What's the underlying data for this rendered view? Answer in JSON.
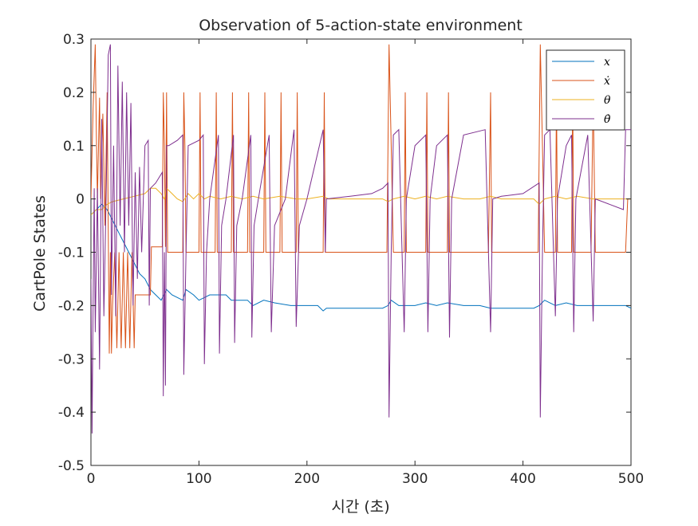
{
  "chart_data": {
    "type": "line",
    "title": "Observation of 5-action-state environment",
    "xlabel": "시간 (초)",
    "ylabel": "CartPole States",
    "xlim": [
      0,
      500
    ],
    "ylim": [
      -0.5,
      0.3
    ],
    "xticks": [
      0,
      100,
      200,
      300,
      400,
      500
    ],
    "xtick_labels": [
      "0",
      "100",
      "200",
      "300",
      "400",
      "500"
    ],
    "yticks": [
      -0.5,
      -0.4,
      -0.3,
      -0.2,
      -0.1,
      0,
      0.1,
      0.2,
      0.3
    ],
    "ytick_labels": [
      "-0.5",
      "-0.4",
      "-0.3",
      "-0.2",
      "-0.1",
      "0",
      "0.1",
      "0.2",
      "0.3"
    ],
    "grid": false,
    "legend_position": "top-right",
    "series": [
      {
        "name": "x",
        "color": "#0072BD",
        "points": [
          [
            0,
            -0.03
          ],
          [
            5,
            -0.02
          ],
          [
            10,
            -0.01
          ],
          [
            15,
            -0.02
          ],
          [
            20,
            -0.04
          ],
          [
            25,
            -0.06
          ],
          [
            30,
            -0.08
          ],
          [
            35,
            -0.1
          ],
          [
            40,
            -0.12
          ],
          [
            45,
            -0.14
          ],
          [
            50,
            -0.15
          ],
          [
            55,
            -0.17
          ],
          [
            60,
            -0.18
          ],
          [
            65,
            -0.19
          ],
          [
            70,
            -0.17
          ],
          [
            75,
            -0.18
          ],
          [
            85,
            -0.19
          ],
          [
            88,
            -0.17
          ],
          [
            95,
            -0.18
          ],
          [
            100,
            -0.19
          ],
          [
            110,
            -0.18
          ],
          [
            125,
            -0.18
          ],
          [
            130,
            -0.19
          ],
          [
            145,
            -0.19
          ],
          [
            150,
            -0.2
          ],
          [
            160,
            -0.19
          ],
          [
            170,
            -0.195
          ],
          [
            185,
            -0.2
          ],
          [
            195,
            -0.2
          ],
          [
            210,
            -0.2
          ],
          [
            215,
            -0.21
          ],
          [
            218,
            -0.205
          ],
          [
            270,
            -0.205
          ],
          [
            275,
            -0.2
          ],
          [
            278,
            -0.19
          ],
          [
            285,
            -0.2
          ],
          [
            300,
            -0.2
          ],
          [
            310,
            -0.195
          ],
          [
            320,
            -0.2
          ],
          [
            330,
            -0.195
          ],
          [
            345,
            -0.2
          ],
          [
            360,
            -0.2
          ],
          [
            370,
            -0.205
          ],
          [
            410,
            -0.205
          ],
          [
            415,
            -0.2
          ],
          [
            420,
            -0.19
          ],
          [
            430,
            -0.2
          ],
          [
            440,
            -0.195
          ],
          [
            450,
            -0.2
          ],
          [
            465,
            -0.2
          ],
          [
            480,
            -0.2
          ],
          [
            495,
            -0.2
          ],
          [
            500,
            -0.205
          ]
        ]
      },
      {
        "name": "ẋ",
        "color": "#D95319",
        "points": [
          [
            0,
            0.0
          ],
          [
            2,
            0.17
          ],
          [
            4,
            0.29
          ],
          [
            5,
            0.12
          ],
          [
            6,
            0.0
          ],
          [
            8,
            0.19
          ],
          [
            9,
            0.0
          ],
          [
            11,
            0.16
          ],
          [
            13,
            -0.05
          ],
          [
            15,
            0.2
          ],
          [
            17,
            -0.29
          ],
          [
            18,
            -0.1
          ],
          [
            19,
            -0.29
          ],
          [
            20,
            -0.2
          ],
          [
            22,
            -0.1
          ],
          [
            24,
            -0.28
          ],
          [
            26,
            -0.1
          ],
          [
            28,
            -0.28
          ],
          [
            30,
            -0.1
          ],
          [
            32,
            -0.28
          ],
          [
            34,
            -0.1
          ],
          [
            36,
            -0.28
          ],
          [
            38,
            -0.1
          ],
          [
            40,
            -0.28
          ],
          [
            41,
            -0.18
          ],
          [
            55,
            -0.18
          ],
          [
            56,
            -0.09
          ],
          [
            66,
            -0.09
          ],
          [
            67,
            0.2
          ],
          [
            68,
            0.1
          ],
          [
            69,
            -0.09
          ],
          [
            70,
            0.2
          ],
          [
            71,
            -0.1
          ],
          [
            85,
            -0.1
          ],
          [
            86,
            0.2
          ],
          [
            87,
            0.1
          ],
          [
            88,
            -0.1
          ],
          [
            100,
            -0.1
          ],
          [
            101,
            0.2
          ],
          [
            102,
            -0.1
          ],
          [
            115,
            -0.1
          ],
          [
            116,
            0.2
          ],
          [
            117,
            -0.1
          ],
          [
            130,
            -0.1
          ],
          [
            131,
            0.2
          ],
          [
            132,
            -0.1
          ],
          [
            145,
            -0.1
          ],
          [
            146,
            0.2
          ],
          [
            147,
            -0.1
          ],
          [
            160,
            -0.1
          ],
          [
            161,
            0.2
          ],
          [
            162,
            -0.1
          ],
          [
            175,
            -0.1
          ],
          [
            176,
            0.2
          ],
          [
            177,
            -0.1
          ],
          [
            190,
            -0.1
          ],
          [
            191,
            0.2
          ],
          [
            192,
            -0.1
          ],
          [
            215,
            -0.1
          ],
          [
            216,
            0.2
          ],
          [
            217,
            -0.1
          ],
          [
            274,
            -0.1
          ],
          [
            276,
            0.29
          ],
          [
            278,
            0.1
          ],
          [
            280,
            -0.1
          ],
          [
            290,
            -0.1
          ],
          [
            291,
            0.2
          ],
          [
            292,
            -0.1
          ],
          [
            310,
            -0.1
          ],
          [
            311,
            0.2
          ],
          [
            312,
            -0.1
          ],
          [
            330,
            -0.1
          ],
          [
            331,
            0.2
          ],
          [
            332,
            -0.1
          ],
          [
            368,
            -0.1
          ],
          [
            370,
            0.2
          ],
          [
            371,
            -0.1
          ],
          [
            414,
            -0.1
          ],
          [
            416,
            0.29
          ],
          [
            418,
            0.1
          ],
          [
            420,
            -0.1
          ],
          [
            430,
            -0.1
          ],
          [
            431,
            0.2
          ],
          [
            432,
            -0.1
          ],
          [
            445,
            -0.1
          ],
          [
            446,
            0.2
          ],
          [
            447,
            -0.1
          ],
          [
            463,
            -0.1
          ],
          [
            465,
            0.2
          ],
          [
            467,
            -0.1
          ],
          [
            495,
            -0.1
          ],
          [
            497,
            0.0
          ],
          [
            500,
            0.0
          ]
        ]
      },
      {
        "name": "θ",
        "color": "#EDB120",
        "points": [
          [
            0,
            -0.03
          ],
          [
            5,
            -0.02
          ],
          [
            10,
            -0.02
          ],
          [
            15,
            -0.01
          ],
          [
            20,
            -0.005
          ],
          [
            30,
            0.0
          ],
          [
            40,
            0.005
          ],
          [
            50,
            0.01
          ],
          [
            55,
            0.02
          ],
          [
            60,
            0.02
          ],
          [
            65,
            0.01
          ],
          [
            68,
            0.0
          ],
          [
            70,
            0.02
          ],
          [
            75,
            0.01
          ],
          [
            80,
            0.0
          ],
          [
            85,
            -0.005
          ],
          [
            90,
            0.01
          ],
          [
            95,
            0.0
          ],
          [
            100,
            0.01
          ],
          [
            105,
            0.0
          ],
          [
            110,
            0.005
          ],
          [
            120,
            0.0
          ],
          [
            130,
            0.005
          ],
          [
            140,
            0.0
          ],
          [
            150,
            0.005
          ],
          [
            160,
            0.0
          ],
          [
            175,
            0.005
          ],
          [
            190,
            0.0
          ],
          [
            200,
            0.0
          ],
          [
            215,
            0.005
          ],
          [
            220,
            0.0
          ],
          [
            270,
            0.0
          ],
          [
            275,
            -0.005
          ],
          [
            280,
            0.0
          ],
          [
            290,
            0.005
          ],
          [
            300,
            0.0
          ],
          [
            310,
            0.005
          ],
          [
            320,
            0.0
          ],
          [
            330,
            0.005
          ],
          [
            345,
            0.0
          ],
          [
            360,
            0.0
          ],
          [
            370,
            0.005
          ],
          [
            380,
            0.0
          ],
          [
            410,
            0.0
          ],
          [
            415,
            -0.01
          ],
          [
            420,
            0.0
          ],
          [
            430,
            0.005
          ],
          [
            440,
            0.0
          ],
          [
            450,
            0.005
          ],
          [
            465,
            0.0
          ],
          [
            480,
            0.0
          ],
          [
            500,
            0.0
          ]
        ]
      },
      {
        "name": "θ̇",
        "color": "#7E2F8E",
        "points": [
          [
            0,
            -0.15
          ],
          [
            1,
            -0.44
          ],
          [
            2,
            -0.2
          ],
          [
            3,
            0.02
          ],
          [
            4,
            -0.25
          ],
          [
            6,
            0.02
          ],
          [
            8,
            -0.32
          ],
          [
            10,
            0.15
          ],
          [
            12,
            -0.22
          ],
          [
            14,
            0.0
          ],
          [
            16,
            0.27
          ],
          [
            18,
            0.29
          ],
          [
            19,
            -0.18
          ],
          [
            21,
            0.1
          ],
          [
            23,
            -0.22
          ],
          [
            25,
            0.25
          ],
          [
            27,
            -0.05
          ],
          [
            29,
            0.22
          ],
          [
            31,
            -0.1
          ],
          [
            33,
            0.2
          ],
          [
            35,
            -0.05
          ],
          [
            37,
            0.18
          ],
          [
            39,
            -0.2
          ],
          [
            41,
            0.05
          ],
          [
            43,
            -0.15
          ],
          [
            45,
            0.06
          ],
          [
            47,
            -0.1
          ],
          [
            50,
            0.1
          ],
          [
            53,
            0.11
          ],
          [
            54,
            -0.2
          ],
          [
            55,
            0.02
          ],
          [
            60,
            0.03
          ],
          [
            66,
            0.05
          ],
          [
            67,
            -0.37
          ],
          [
            68,
            -0.1
          ],
          [
            69,
            -0.35
          ],
          [
            70,
            0.1
          ],
          [
            72,
            0.1
          ],
          [
            80,
            0.11
          ],
          [
            85,
            0.12
          ],
          [
            86,
            -0.33
          ],
          [
            88,
            -0.1
          ],
          [
            90,
            0.1
          ],
          [
            100,
            0.11
          ],
          [
            104,
            0.12
          ],
          [
            105,
            -0.31
          ],
          [
            107,
            -0.1
          ],
          [
            110,
            0.0
          ],
          [
            118,
            0.12
          ],
          [
            119,
            -0.29
          ],
          [
            121,
            -0.05
          ],
          [
            125,
            0.0
          ],
          [
            132,
            0.12
          ],
          [
            133,
            -0.27
          ],
          [
            135,
            -0.05
          ],
          [
            140,
            0.0
          ],
          [
            148,
            0.12
          ],
          [
            149,
            -0.26
          ],
          [
            151,
            -0.05
          ],
          [
            155,
            0.0
          ],
          [
            165,
            0.12
          ],
          [
            167,
            -0.25
          ],
          [
            170,
            -0.05
          ],
          [
            180,
            0.0
          ],
          [
            188,
            0.13
          ],
          [
            190,
            -0.24
          ],
          [
            193,
            -0.05
          ],
          [
            200,
            0.0
          ],
          [
            215,
            0.13
          ],
          [
            217,
            -0.1
          ],
          [
            218,
            0.0
          ],
          [
            240,
            0.005
          ],
          [
            260,
            0.01
          ],
          [
            270,
            0.02
          ],
          [
            275,
            0.03
          ],
          [
            276,
            -0.41
          ],
          [
            278,
            -0.1
          ],
          [
            280,
            0.12
          ],
          [
            285,
            0.13
          ],
          [
            290,
            -0.25
          ],
          [
            292,
            0.0
          ],
          [
            300,
            0.1
          ],
          [
            310,
            0.12
          ],
          [
            312,
            -0.25
          ],
          [
            314,
            0.0
          ],
          [
            320,
            0.1
          ],
          [
            330,
            0.12
          ],
          [
            332,
            -0.26
          ],
          [
            334,
            0.0
          ],
          [
            345,
            0.12
          ],
          [
            365,
            0.13
          ],
          [
            370,
            -0.25
          ],
          [
            372,
            0.0
          ],
          [
            380,
            0.005
          ],
          [
            400,
            0.01
          ],
          [
            415,
            0.03
          ],
          [
            416,
            -0.41
          ],
          [
            418,
            -0.1
          ],
          [
            420,
            0.12
          ],
          [
            425,
            0.13
          ],
          [
            430,
            -0.22
          ],
          [
            432,
            0.0
          ],
          [
            440,
            0.1
          ],
          [
            445,
            0.12
          ],
          [
            447,
            -0.25
          ],
          [
            449,
            0.0
          ],
          [
            460,
            0.12
          ],
          [
            465,
            -0.23
          ],
          [
            467,
            0.0
          ],
          [
            480,
            -0.01
          ],
          [
            493,
            -0.02
          ],
          [
            495,
            0.13
          ],
          [
            500,
            0.13
          ]
        ]
      }
    ]
  }
}
